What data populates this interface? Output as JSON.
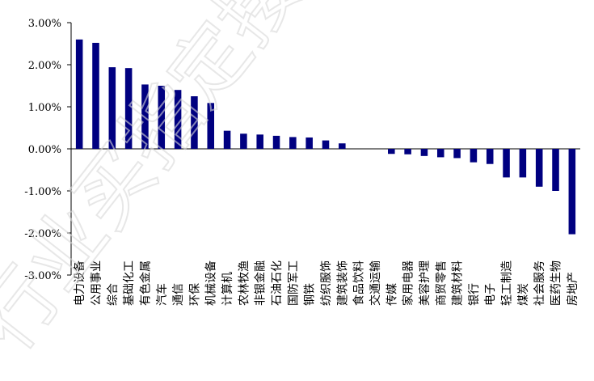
{
  "chart_data": {
    "type": "bar",
    "categories": [
      "电力设备",
      "公用事业",
      "综合",
      "基础化工",
      "有色金属",
      "汽车",
      "通信",
      "环保",
      "机械设备",
      "计算机",
      "农林牧渔",
      "非银金融",
      "石油石化",
      "国防军工",
      "钢铁",
      "纺织服饰",
      "建筑装饰",
      "食品饮料",
      "交通运输",
      "传媒",
      "家用电器",
      "美容护理",
      "商贸零售",
      "建筑材料",
      "银行",
      "电子",
      "轻工制造",
      "煤炭",
      "社会服务",
      "医药生物",
      "房地产"
    ],
    "values": [
      2.6,
      2.52,
      1.94,
      1.92,
      1.53,
      1.5,
      1.4,
      1.25,
      1.09,
      0.43,
      0.36,
      0.34,
      0.31,
      0.28,
      0.27,
      0.2,
      0.13,
      0.0,
      0.0,
      -0.12,
      -0.13,
      -0.17,
      -0.2,
      -0.22,
      -0.32,
      -0.36,
      -0.68,
      -0.68,
      -0.9,
      -1.0,
      -2.03
    ],
    "ylim": [
      -3.0,
      3.0
    ],
    "yticks": [
      "3.00%",
      "2.00%",
      "1.00%",
      "0.00%",
      "-1.00%",
      "-2.00%",
      "-3.00%"
    ],
    "bar_color": "#000080",
    "title": "",
    "xlabel": "",
    "ylabel": ""
  },
  "watermark": "行业买指定接收人"
}
